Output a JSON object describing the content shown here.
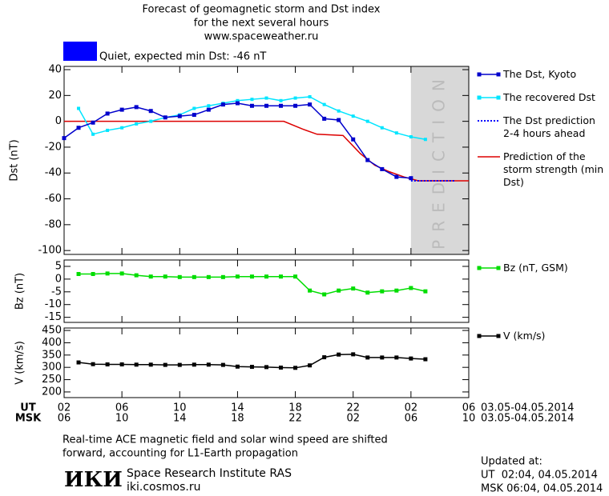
{
  "header": {
    "title": [
      "Forecast of geomagnetic storm and Dst index",
      "for the next several hours",
      "www.spaceweather.ru"
    ],
    "status": "Quiet, expected min Dst: -46 nT",
    "status_color": "#0000ff"
  },
  "chart_data": [
    {
      "type": "line",
      "y_label": "Dst (nT)",
      "ylim": [
        -103,
        42.5
      ],
      "yticks": [
        40,
        20,
        0,
        -20,
        -40,
        -60,
        -80,
        -100
      ],
      "prediction_region": {
        "xlim": [
          24,
          28
        ],
        "label": "PREDICTION",
        "color": "#d8d8d8"
      },
      "series": [
        {
          "name": "The Dst, Kyoto",
          "color": "#0000cc",
          "marker": "square",
          "x": [
            0,
            1,
            2,
            3,
            4,
            5,
            6,
            7,
            8,
            9,
            10,
            11,
            12,
            13,
            14,
            15,
            16,
            17,
            18,
            19,
            20,
            21,
            22,
            23,
            24
          ],
          "values": [
            -13,
            -5,
            -1,
            6,
            9,
            11,
            8,
            3,
            4,
            5,
            9,
            13,
            14,
            12,
            12,
            12,
            12,
            13,
            2,
            1,
            -14,
            -30,
            -37,
            -43,
            -44
          ]
        },
        {
          "name": "The recovered Dst",
          "color": "#00e5ff",
          "marker": "square",
          "x": [
            1,
            2,
            3,
            4,
            5,
            6,
            7,
            8,
            9,
            10,
            11,
            12,
            13,
            14,
            15,
            16,
            17,
            18,
            19,
            20,
            21,
            22,
            23,
            24,
            25
          ],
          "values": [
            10,
            -10,
            -7,
            -5,
            -2,
            0,
            3,
            5,
            10,
            12,
            14,
            16,
            17,
            18,
            16,
            18,
            19,
            13,
            8,
            4,
            0,
            -5,
            -9,
            -12,
            -14
          ]
        },
        {
          "name": "The Dst prediction 2-4 hours ahead",
          "color": "#0000ff",
          "dashed": true,
          "x": [
            24,
            27
          ],
          "values": [
            -46,
            -46
          ]
        },
        {
          "name": "Prediction of the storm strength (min Dst)",
          "color": "#dd0000",
          "x": [
            0,
            15.2,
            16.5,
            17.5,
            19.3,
            20.5,
            21.5,
            22.5,
            23.5,
            24.5,
            28
          ],
          "values": [
            0,
            0,
            -6,
            -10,
            -11,
            -25,
            -34,
            -39,
            -43,
            -46,
            -46
          ]
        }
      ]
    },
    {
      "type": "line",
      "y_label": "Bz (nT)",
      "ylim": [
        -17,
        7.5
      ],
      "yticks": [
        5,
        0,
        -5,
        -10,
        -15
      ],
      "series": [
        {
          "name": "Bz (nT, GSM)",
          "color": "#00dd00",
          "marker": "square",
          "x": [
            1,
            2,
            3,
            4,
            5,
            6,
            7,
            8,
            9,
            10,
            11,
            12,
            13,
            14,
            15,
            16,
            17,
            18,
            19,
            20,
            21,
            22,
            23,
            24,
            25
          ],
          "values": [
            2,
            2,
            2.2,
            2.2,
            1.5,
            1,
            1,
            0.8,
            0.8,
            0.8,
            0.8,
            1,
            1,
            1,
            1,
            1,
            -4.5,
            -6,
            -4.5,
            -3.7,
            -5.3,
            -4.8,
            -4.5,
            -3.5,
            -4.8
          ]
        }
      ]
    },
    {
      "type": "line",
      "y_label": "V (km/s)",
      "ylim": [
        177,
        460
      ],
      "yticks": [
        450,
        400,
        350,
        300,
        250,
        200
      ],
      "xlim": [
        0,
        28
      ],
      "xticks": [
        {
          "value": 0,
          "label": "02"
        },
        {
          "value": 4,
          "label": "06"
        },
        {
          "value": 8,
          "label": "10"
        },
        {
          "value": 12,
          "label": "14"
        },
        {
          "value": 16,
          "label": "18"
        },
        {
          "value": 20,
          "label": "22"
        },
        {
          "value": 24,
          "label": "02"
        },
        {
          "value": 28,
          "label": "06"
        }
      ],
      "xticks_msk": [
        {
          "value": 0,
          "label": "06"
        },
        {
          "value": 4,
          "label": "10"
        },
        {
          "value": 8,
          "label": "14"
        },
        {
          "value": 12,
          "label": "18"
        },
        {
          "value": 16,
          "label": "22"
        },
        {
          "value": 20,
          "label": "02"
        },
        {
          "value": 24,
          "label": "06"
        },
        {
          "value": 28,
          "label": "10"
        }
      ],
      "x_row_labels": [
        "UT",
        "MSK"
      ],
      "x_date_labels": [
        "03.05-04.05.2014",
        "03.05-04.05.2014"
      ],
      "series": [
        {
          "name": "V (km/s)",
          "color": "#000000",
          "marker": "square",
          "x": [
            1,
            2,
            3,
            4,
            5,
            6,
            7,
            8,
            9,
            10,
            11,
            12,
            13,
            14,
            15,
            16,
            17,
            18,
            19,
            20,
            21,
            22,
            23,
            24,
            25
          ],
          "values": [
            320,
            313,
            312,
            312,
            311,
            311,
            310,
            310,
            311,
            311,
            310,
            303,
            302,
            301,
            299,
            298,
            308,
            341,
            352,
            353,
            340,
            340,
            340,
            336,
            333
          ]
        }
      ]
    }
  ],
  "note": [
    "Real-time ACE magnetic field and solar wind speed are shifted",
    "forward, accounting for L1-Earth propagation"
  ],
  "footer": {
    "logo": "ИКИ",
    "institute": "Space Research Institute RAS",
    "site": "iki.cosmos.ru"
  },
  "updated": [
    "Updated at:",
    "UT  02:04, 04.05.2014",
    "MSK 06:04, 04.05.2014"
  ]
}
